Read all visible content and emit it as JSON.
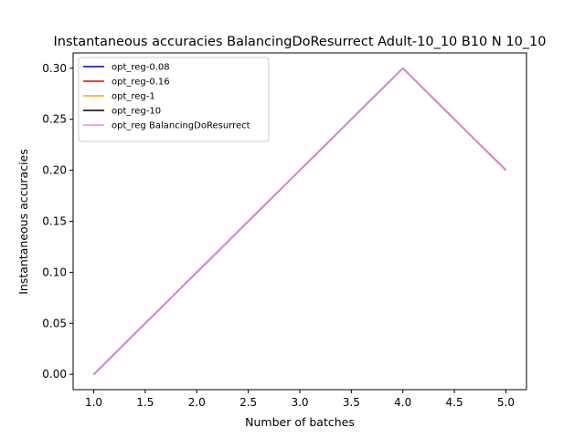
{
  "chart_data": {
    "type": "line",
    "title": "Instantaneous accuracies BalancingDoResurrect Adult-10_10 B10 N 10_10",
    "xlabel": "Number of batches",
    "ylabel": "Instantaneous accuracies",
    "xlim": [
      0.8,
      5.2
    ],
    "ylim": [
      -0.015,
      0.315
    ],
    "xticks": [
      1.0,
      1.5,
      2.0,
      2.5,
      3.0,
      3.5,
      4.0,
      4.5,
      5.0
    ],
    "xtick_labels": [
      "1.0",
      "1.5",
      "2.0",
      "2.5",
      "3.0",
      "3.5",
      "4.0",
      "4.5",
      "5.0"
    ],
    "yticks": [
      0.0,
      0.05,
      0.1,
      0.15,
      0.2,
      0.25,
      0.3
    ],
    "ytick_labels": [
      "0.00",
      "0.05",
      "0.10",
      "0.15",
      "0.20",
      "0.25",
      "0.30"
    ],
    "grid": false,
    "legend_position": "top-left",
    "x": [
      1,
      4,
      5
    ],
    "series": [
      {
        "name": "opt_reg-0.08",
        "color": "#0000cc",
        "values": [
          0.0,
          0.3,
          0.2
        ]
      },
      {
        "name": "opt_reg-0.16",
        "color": "#ee0000",
        "values": [
          0.0,
          0.3,
          0.2
        ]
      },
      {
        "name": "opt_reg-1",
        "color": "#ffa500",
        "values": [
          0.0,
          0.3,
          0.2
        ]
      },
      {
        "name": "opt_reg-10",
        "color": "#000000",
        "values": [
          0.0,
          0.3,
          0.2
        ]
      },
      {
        "name": "opt_reg BalancingDoResurrect",
        "color": "#ee82ee",
        "values": [
          0.0,
          0.3,
          0.2
        ]
      }
    ]
  }
}
